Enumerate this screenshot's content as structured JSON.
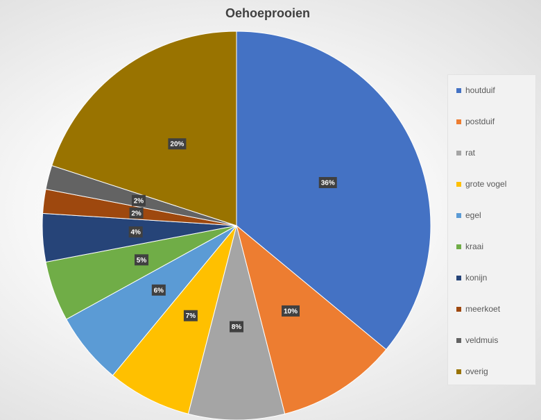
{
  "chart_data": {
    "type": "pie",
    "title": "Oehoeprooien",
    "legend_position": "right",
    "slices": [
      {
        "name": "houtduif",
        "value": 36,
        "label": "36%",
        "color": "#4472C4"
      },
      {
        "name": "postduif",
        "value": 10,
        "label": "10%",
        "color": "#ED7D31"
      },
      {
        "name": "rat",
        "value": 8,
        "label": "8%",
        "color": "#A5A5A5"
      },
      {
        "name": "grote vogel",
        "value": 7,
        "label": "7%",
        "color": "#FFC000"
      },
      {
        "name": "egel",
        "value": 6,
        "label": "6%",
        "color": "#5B9BD5"
      },
      {
        "name": "kraai",
        "value": 5,
        "label": "5%",
        "color": "#70AD47"
      },
      {
        "name": "konijn",
        "value": 4,
        "label": "4%",
        "color": "#264478"
      },
      {
        "name": "meerkoet",
        "value": 2,
        "label": "2%",
        "color": "#9E480E"
      },
      {
        "name": "veldmuis",
        "value": 2,
        "label": "2%",
        "color": "#636363"
      },
      {
        "name": "overig",
        "value": 20,
        "label": "20%",
        "color": "#997300"
      }
    ]
  }
}
